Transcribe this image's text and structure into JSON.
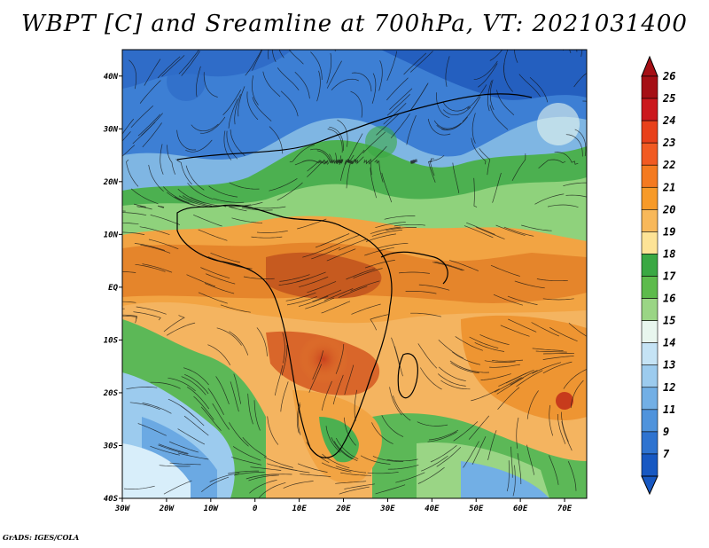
{
  "title": "WBPT [C] and Sreamline at 700hPa, VT: 2021031400",
  "footer": "GrADS: IGES/COLA",
  "map": {
    "lat_labels": [
      "40N",
      "30N",
      "20N",
      "10N",
      "EQ",
      "10S",
      "20S",
      "30S",
      "40S"
    ],
    "lat_values": [
      40,
      30,
      20,
      10,
      0,
      -10,
      -20,
      -30,
      -40
    ],
    "lon_labels": [
      "30W",
      "20W",
      "10W",
      "0",
      "10E",
      "20E",
      "30E",
      "40E",
      "50E",
      "60E",
      "70E"
    ],
    "lon_values": [
      -30,
      -20,
      -10,
      0,
      10,
      20,
      30,
      40,
      50,
      60,
      70
    ],
    "lon_range": [
      -30,
      75
    ],
    "lat_range": [
      -40,
      45
    ]
  },
  "colorbar": {
    "labels": [
      "26",
      "25",
      "24",
      "23",
      "22",
      "21",
      "20",
      "19",
      "18",
      "17",
      "16",
      "15",
      "14",
      "13",
      "12",
      "11",
      "9",
      "7"
    ],
    "colors": [
      "#a50f15",
      "#cb181d",
      "#e8401a",
      "#f15a22",
      "#f47a20",
      "#f79a28",
      "#f8b85a",
      "#fde396",
      "#3aa843",
      "#5dbb4c",
      "#9ad585",
      "#e8f6ee",
      "#c5e3f5",
      "#9ccbee",
      "#72afe5",
      "#4f93dc",
      "#2e73d0",
      "#1758c2"
    ]
  }
}
